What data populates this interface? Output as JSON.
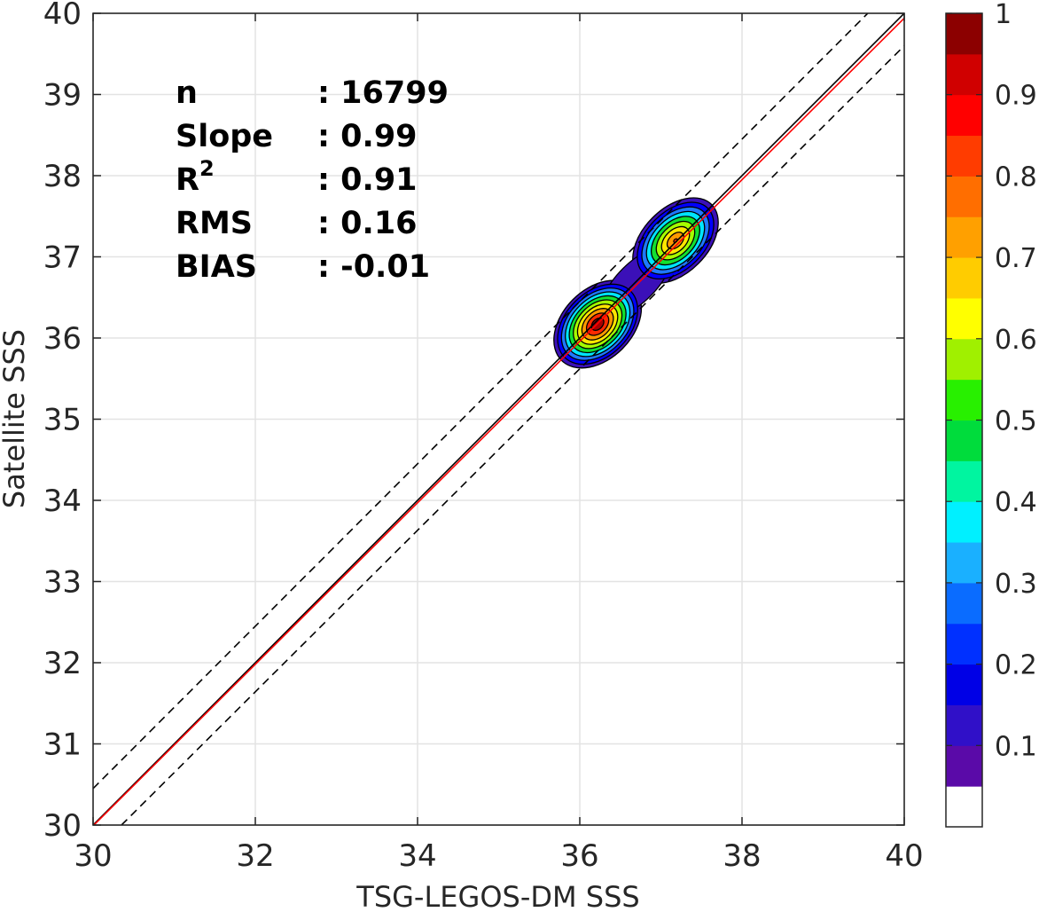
{
  "chart_data": {
    "type": "contour",
    "xlabel": "TSG-LEGOS-DM SSS",
    "ylabel": "Satellite SSS",
    "xlim": [
      30,
      40
    ],
    "ylim": [
      30,
      40
    ],
    "x_ticks": [
      "30",
      "32",
      "34",
      "36",
      "38",
      "40"
    ],
    "y_ticks": [
      "30",
      "31",
      "32",
      "33",
      "34",
      "35",
      "36",
      "37",
      "38",
      "39",
      "40"
    ],
    "grid": true,
    "stats": [
      {
        "label": "n",
        "value": ": 16799"
      },
      {
        "label": "Slope",
        "value": ": 0.99"
      },
      {
        "label": "R",
        "sup": "2",
        "value": ": 0.91"
      },
      {
        "label": "RMS",
        "value": ": 0.16"
      },
      {
        "label": "BIAS",
        "value": ": -0.01"
      }
    ],
    "reference_lines": [
      {
        "kind": "one-to-one",
        "color": "#000000",
        "style": "solid",
        "x": [
          30,
          40
        ],
        "y": [
          30,
          40
        ]
      },
      {
        "kind": "regression",
        "color": "#ff0000",
        "style": "solid",
        "x": [
          30,
          40
        ],
        "y": [
          29.99,
          39.94
        ]
      },
      {
        "kind": "upper-bound",
        "color": "#000000",
        "style": "dashed",
        "x": [
          30,
          39.55
        ],
        "y": [
          30.45,
          40
        ]
      },
      {
        "kind": "lower-bound",
        "color": "#000000",
        "style": "dashed",
        "x": [
          30.35,
          40
        ],
        "y": [
          30,
          39.6
        ]
      }
    ],
    "density_peaks": [
      {
        "x": 36.22,
        "y": 36.17,
        "value": 1.0
      },
      {
        "x": 37.18,
        "y": 37.2,
        "value": 0.87
      }
    ],
    "contour_levels": [
      {
        "level": 0.05,
        "color": "#3b10b8"
      },
      {
        "level": 0.15,
        "color": "#0000ff"
      },
      {
        "level": 0.25,
        "color": "#1e78ff"
      },
      {
        "level": 0.35,
        "color": "#00e5ff"
      },
      {
        "level": 0.45,
        "color": "#12e030"
      },
      {
        "level": 0.55,
        "color": "#a6ff00"
      },
      {
        "level": 0.65,
        "color": "#ffe600"
      },
      {
        "level": 0.75,
        "color": "#ff9900"
      },
      {
        "level": 0.85,
        "color": "#ff2a00"
      },
      {
        "level": 0.95,
        "color": "#a80000"
      }
    ],
    "colorbar": {
      "range": [
        0,
        1
      ],
      "ticks": [
        "0.1",
        "0.2",
        "0.3",
        "0.4",
        "0.5",
        "0.6",
        "0.7",
        "0.8",
        "0.9",
        "1"
      ],
      "colors": [
        "#ffffff",
        "#5a0aa8",
        "#3010c8",
        "#0000e6",
        "#0030ff",
        "#0a6cff",
        "#1ab0ff",
        "#00f0ff",
        "#00f5a0",
        "#00dc3c",
        "#28f000",
        "#a0f000",
        "#ffff00",
        "#ffcc00",
        "#ffa000",
        "#ff6e00",
        "#ff3c00",
        "#ff0000",
        "#d00000",
        "#8c0000"
      ]
    }
  }
}
